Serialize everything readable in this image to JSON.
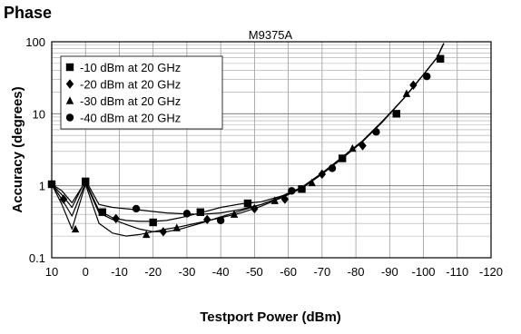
{
  "chart_data": {
    "type": "line",
    "title": "Phase",
    "subtitle": "M9375A",
    "xlabel": "Testport Power (dBm)",
    "ylabel": "Accuracy (degrees)",
    "xlim": [
      10,
      -120
    ],
    "ylim": [
      0.1,
      100
    ],
    "yscale": "log",
    "grid": true,
    "legend_placement": "top-left",
    "x_ticks": [
      10,
      0,
      -10,
      -20,
      -30,
      -40,
      -50,
      -60,
      -70,
      -80,
      -90,
      -100,
      -110,
      -120
    ],
    "x_tick_labels": [
      "10",
      "0",
      "-10",
      "-20",
      "-30",
      "-40",
      "-50",
      "-60",
      "-70",
      "-80",
      "-90",
      "-100",
      "-110",
      "-120"
    ],
    "y_ticks": [
      0.1,
      1,
      10,
      100
    ],
    "y_tick_labels": [
      "0.1",
      "1",
      "10",
      "100"
    ],
    "series": [
      {
        "name": "-10 dBm at 20 GHz",
        "marker": "square",
        "x": [
          10,
          7,
          4,
          0,
          -4,
          -8,
          -12,
          -16,
          -20,
          -24,
          -28,
          -34,
          -40,
          -46,
          -52,
          -58,
          -64,
          -70,
          -76,
          -82,
          -88,
          -94,
          -100,
          -104,
          -106
        ],
        "y": [
          1.05,
          0.85,
          0.58,
          1.15,
          0.45,
          0.36,
          0.33,
          0.32,
          0.32,
          0.33,
          0.36,
          0.42,
          0.5,
          0.56,
          0.6,
          0.72,
          0.95,
          1.5,
          2.5,
          4.2,
          8,
          16,
          35,
          60,
          95
        ],
        "marker_x": [
          10,
          0,
          -5,
          -20,
          -34,
          -48,
          -64,
          -76,
          -92,
          -105
        ],
        "marker_y": [
          1.05,
          1.15,
          0.43,
          0.31,
          0.43,
          0.57,
          0.9,
          2.4,
          10,
          58
        ]
      },
      {
        "name": "-20 dBm at 20 GHz",
        "marker": "diamond",
        "x": [
          10,
          7,
          4,
          0,
          -4,
          -8,
          -12,
          -16,
          -20,
          -24,
          -28,
          -34,
          -40,
          -46,
          -52,
          -58,
          -64,
          -70,
          -76,
          -82,
          -88,
          -94,
          -100,
          -104,
          -106
        ],
        "y": [
          1.05,
          0.65,
          0.38,
          1.1,
          0.42,
          0.34,
          0.29,
          0.25,
          0.23,
          0.23,
          0.25,
          0.3,
          0.37,
          0.45,
          0.55,
          0.7,
          0.95,
          1.5,
          2.5,
          4.2,
          8,
          16,
          35,
          60,
          95
        ],
        "marker_x": [
          10,
          6.5,
          -9,
          -23,
          -36,
          -50,
          -59,
          -70,
          -82,
          -97
        ],
        "marker_y": [
          1.05,
          0.65,
          0.35,
          0.23,
          0.34,
          0.48,
          0.65,
          1.45,
          3.6,
          25
        ]
      },
      {
        "name": "-30 dBm at 20 GHz",
        "marker": "triangle",
        "x": [
          10,
          7,
          4,
          0,
          -4,
          -8,
          -12,
          -16,
          -20,
          -24,
          -28,
          -34,
          -40,
          -46,
          -52,
          -58,
          -64,
          -70,
          -76,
          -82,
          -88,
          -94,
          -100,
          -104,
          -106
        ],
        "y": [
          1.05,
          0.55,
          0.25,
          1.05,
          0.3,
          0.22,
          0.2,
          0.21,
          0.23,
          0.25,
          0.27,
          0.31,
          0.36,
          0.42,
          0.52,
          0.68,
          0.92,
          1.45,
          2.4,
          4.1,
          7.8,
          16,
          35,
          60,
          95
        ],
        "marker_x": [
          3,
          -18,
          -27,
          -44,
          -56,
          -67,
          -79,
          -95
        ],
        "marker_y": [
          0.25,
          0.21,
          0.26,
          0.4,
          0.62,
          1.1,
          3.3,
          19
        ]
      },
      {
        "name": "-40 dBm at 20 GHz",
        "marker": "circle",
        "x": [
          10,
          7,
          4,
          0,
          -4,
          -8,
          -12,
          -16,
          -20,
          -24,
          -28,
          -34,
          -40,
          -46,
          -52,
          -58,
          -64,
          -70,
          -76,
          -82,
          -88,
          -94,
          -100,
          -104,
          -106
        ],
        "y": [
          1.05,
          0.75,
          0.5,
          1.2,
          0.55,
          0.5,
          0.48,
          0.46,
          0.44,
          0.42,
          0.41,
          0.4,
          0.42,
          0.47,
          0.55,
          0.7,
          0.95,
          1.5,
          2.5,
          4.2,
          8,
          16,
          35,
          60,
          95
        ],
        "marker_x": [
          10,
          -15,
          -30,
          -40,
          -61,
          -73,
          -86,
          -101
        ],
        "marker_y": [
          1.05,
          0.48,
          0.41,
          0.33,
          0.85,
          1.75,
          5.6,
          33
        ]
      }
    ]
  }
}
